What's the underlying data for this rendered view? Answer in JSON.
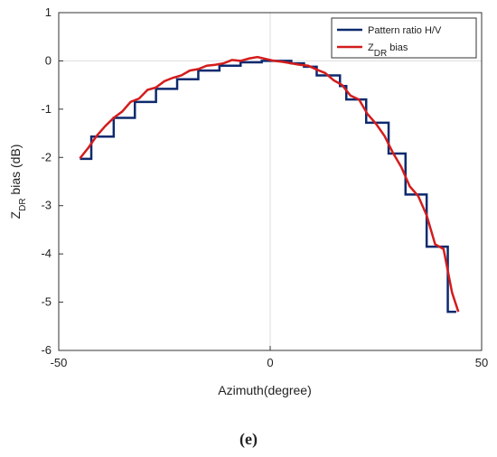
{
  "chart_data": {
    "type": "line",
    "xlabel": "Azimuth(degree)",
    "ylabel": [
      {
        "text": "Z"
      },
      {
        "text": "DR",
        "sub": true
      },
      {
        "text": " bias (dB)"
      }
    ],
    "annotation": "(e)",
    "xlim": [
      -50,
      50
    ],
    "xticks": [
      -50,
      0,
      50
    ],
    "ylim": [
      -6,
      1
    ],
    "yticks": [
      1,
      0,
      -1,
      -2,
      -3,
      -4,
      -5,
      -6
    ],
    "reference_lines": {
      "x": 0,
      "y": 0
    },
    "legend": "upper right",
    "series": [
      {
        "name": "Pattern ratio H/V",
        "color": "#0d2a6e",
        "x": [
          -45,
          -42.3,
          -42.3,
          -37,
          -37,
          -32,
          -32,
          -27,
          -27,
          -22,
          -22,
          -17,
          -17,
          -12,
          -12,
          -7,
          -7,
          -2,
          -2,
          5,
          5,
          8,
          8,
          11,
          11,
          16.5,
          16.5,
          18,
          18,
          22.7,
          22.7,
          28,
          28,
          32,
          32,
          37,
          37,
          42,
          42,
          44
        ],
        "values": [
          -2.03,
          -2.03,
          -1.57,
          -1.57,
          -1.18,
          -1.18,
          -0.85,
          -0.85,
          -0.58,
          -0.58,
          -0.38,
          -0.38,
          -0.2,
          -0.2,
          -0.1,
          -0.1,
          -0.03,
          -0.03,
          0,
          0,
          -0.05,
          -0.05,
          -0.12,
          -0.12,
          -0.3,
          -0.3,
          -0.52,
          -0.52,
          -0.8,
          -0.8,
          -1.28,
          -1.28,
          -1.92,
          -1.92,
          -2.77,
          -2.77,
          -3.85,
          -3.85,
          -5.2,
          -5.2
        ]
      },
      {
        "name": [
          {
            "text": "Z"
          },
          {
            "text": "DR",
            "sub": true
          },
          {
            "text": " bias"
          }
        ],
        "color": "#d41c1c",
        "x": [
          -45,
          -43,
          -41,
          -39,
          -37,
          -35,
          -33,
          -31,
          -29,
          -27,
          -25,
          -23,
          -21,
          -19,
          -17,
          -15,
          -13,
          -11,
          -9,
          -7,
          -5,
          -3,
          -1,
          1,
          3,
          5,
          7,
          9,
          11,
          13,
          15,
          17,
          19,
          21,
          23,
          25,
          27,
          29,
          31,
          33,
          35,
          37,
          39,
          41,
          43,
          44.5
        ],
        "values": [
          -2.02,
          -1.8,
          -1.55,
          -1.35,
          -1.18,
          -1.05,
          -0.85,
          -0.78,
          -0.6,
          -0.55,
          -0.42,
          -0.35,
          -0.3,
          -0.2,
          -0.17,
          -0.1,
          -0.08,
          -0.05,
          0.02,
          0.0,
          0.05,
          0.08,
          0.04,
          0.0,
          -0.02,
          -0.05,
          -0.08,
          -0.1,
          -0.18,
          -0.25,
          -0.4,
          -0.5,
          -0.72,
          -0.8,
          -1.1,
          -1.3,
          -1.55,
          -1.9,
          -2.2,
          -2.6,
          -2.8,
          -3.2,
          -3.8,
          -3.9,
          -4.8,
          -5.2
        ]
      }
    ]
  }
}
